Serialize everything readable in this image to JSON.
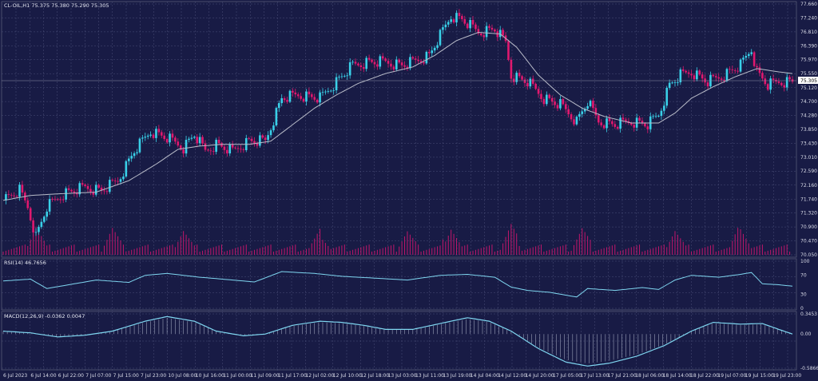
{
  "chart_data": [
    {
      "type": "candlestick",
      "panel": "price",
      "title": "CL-OIL,H1  75.375 75.380 75.290 75.305",
      "last_price_label": "75.305",
      "ylim": [
        70.05,
        77.66
      ],
      "y_ticks": [
        "77.660",
        "77.240",
        "76.810",
        "76.390",
        "75.970",
        "75.550",
        "75.120",
        "74.700",
        "74.280",
        "73.850",
        "73.430",
        "73.010",
        "72.590",
        "72.160",
        "71.740",
        "71.320",
        "70.900",
        "70.470",
        "70.050"
      ],
      "x_tick_labels": [
        "6 Jul 2023",
        "6 Jul 14:00",
        "6 Jul 22:00",
        "7 Jul 07:00",
        "7 Jul 15:00",
        "7 Jul 23:00",
        "10 Jul 08:00",
        "10 Jul 16:00",
        "11 Jul 00:00",
        "11 Jul 09:00",
        "11 Jul 17:00",
        "12 Jul 02:00",
        "12 Jul 10:00",
        "12 Jul 18:00",
        "13 Jul 03:00",
        "13 Jul 11:00",
        "13 Jul 19:00",
        "14 Jul 04:00",
        "14 Jul 12:00",
        "14 Jul 20:00",
        "17 Jul 05:00",
        "17 Jul 13:00",
        "17 Jul 21:00",
        "18 Jul 06:00",
        "18 Jul 14:00",
        "18 Jul 22:00",
        "19 Jul 07:00",
        "19 Jul 15:00",
        "19 Jul 23:00"
      ],
      "close_path": [
        [
          0,
          71.7
        ],
        [
          6,
          72.0
        ],
        [
          9,
          71.5
        ],
        [
          12,
          70.6
        ],
        [
          16,
          71.5
        ],
        [
          22,
          71.9
        ],
        [
          30,
          72.1
        ],
        [
          36,
          72.0
        ],
        [
          42,
          72.3
        ],
        [
          48,
          73.2
        ],
        [
          54,
          73.8
        ],
        [
          60,
          73.6
        ],
        [
          66,
          73.3
        ],
        [
          70,
          73.7
        ],
        [
          74,
          73.2
        ],
        [
          78,
          73.4
        ],
        [
          84,
          73.2
        ],
        [
          90,
          73.5
        ],
        [
          96,
          73.5
        ],
        [
          102,
          74.8
        ],
        [
          108,
          74.9
        ],
        [
          116,
          74.8
        ],
        [
          122,
          75.3
        ],
        [
          128,
          75.8
        ],
        [
          134,
          75.9
        ],
        [
          140,
          75.9
        ],
        [
          146,
          75.8
        ],
        [
          150,
          75.9
        ],
        [
          156,
          76.1
        ],
        [
          160,
          76.7
        ],
        [
          164,
          77.3
        ],
        [
          168,
          77.2
        ],
        [
          174,
          76.8
        ],
        [
          180,
          76.9
        ],
        [
          184,
          76.5
        ],
        [
          186,
          75.5
        ],
        [
          192,
          75.3
        ],
        [
          198,
          74.8
        ],
        [
          204,
          74.6
        ],
        [
          210,
          74.1
        ],
        [
          214,
          74.7
        ],
        [
          218,
          74.1
        ],
        [
          224,
          74.0
        ],
        [
          230,
          74.1
        ],
        [
          236,
          74.0
        ],
        [
          240,
          74.3
        ],
        [
          244,
          75.2
        ],
        [
          248,
          75.5
        ],
        [
          252,
          75.6
        ],
        [
          258,
          75.3
        ],
        [
          264,
          75.5
        ],
        [
          270,
          75.8
        ],
        [
          274,
          76.3
        ],
        [
          276,
          75.6
        ],
        [
          280,
          75.2
        ],
        [
          284,
          75.3
        ],
        [
          289,
          75.305
        ]
      ],
      "ma_path": [
        [
          0,
          71.7
        ],
        [
          10,
          71.85
        ],
        [
          20,
          71.9
        ],
        [
          34,
          71.95
        ],
        [
          46,
          72.3
        ],
        [
          56,
          72.8
        ],
        [
          64,
          73.25
        ],
        [
          72,
          73.35
        ],
        [
          80,
          73.4
        ],
        [
          90,
          73.4
        ],
        [
          98,
          73.5
        ],
        [
          106,
          74.0
        ],
        [
          114,
          74.5
        ],
        [
          122,
          74.9
        ],
        [
          130,
          75.25
        ],
        [
          140,
          75.55
        ],
        [
          150,
          75.75
        ],
        [
          158,
          76.1
        ],
        [
          166,
          76.55
        ],
        [
          174,
          76.8
        ],
        [
          182,
          76.75
        ],
        [
          188,
          76.35
        ],
        [
          196,
          75.5
        ],
        [
          204,
          74.9
        ],
        [
          212,
          74.5
        ],
        [
          220,
          74.25
        ],
        [
          230,
          74.05
        ],
        [
          240,
          74.05
        ],
        [
          246,
          74.35
        ],
        [
          252,
          74.8
        ],
        [
          260,
          75.15
        ],
        [
          268,
          75.45
        ],
        [
          276,
          75.7
        ],
        [
          284,
          75.6
        ],
        [
          289,
          75.55
        ]
      ],
      "volume_spikes": [
        [
          12,
          1
        ],
        [
          40,
          0.9
        ],
        [
          66,
          0.8
        ],
        [
          116,
          0.7
        ],
        [
          148,
          0.75
        ],
        [
          164,
          0.9
        ],
        [
          186,
          1
        ],
        [
          212,
          0.85
        ],
        [
          246,
          0.8
        ],
        [
          270,
          1
        ]
      ]
    },
    {
      "type": "line",
      "panel": "rsi",
      "title": "RSI(14) 46.7656",
      "ylim": [
        0,
        100
      ],
      "y_ticks": [
        "100",
        "70",
        "30",
        "0"
      ],
      "path": [
        [
          0,
          58
        ],
        [
          10,
          62
        ],
        [
          16,
          42
        ],
        [
          22,
          48
        ],
        [
          34,
          60
        ],
        [
          46,
          55
        ],
        [
          52,
          70
        ],
        [
          60,
          74
        ],
        [
          72,
          66
        ],
        [
          84,
          60
        ],
        [
          92,
          56
        ],
        [
          102,
          78
        ],
        [
          114,
          74
        ],
        [
          124,
          68
        ],
        [
          136,
          64
        ],
        [
          148,
          60
        ],
        [
          160,
          70
        ],
        [
          170,
          72
        ],
        [
          180,
          66
        ],
        [
          186,
          45
        ],
        [
          192,
          38
        ],
        [
          200,
          34
        ],
        [
          210,
          24
        ],
        [
          214,
          42
        ],
        [
          224,
          38
        ],
        [
          234,
          44
        ],
        [
          240,
          40
        ],
        [
          246,
          60
        ],
        [
          252,
          70
        ],
        [
          262,
          66
        ],
        [
          270,
          72
        ],
        [
          274,
          76
        ],
        [
          278,
          52
        ],
        [
          284,
          50
        ],
        [
          289,
          47
        ]
      ]
    },
    {
      "type": "line",
      "panel": "macd",
      "title": "MACD(12,26,9) -0.0362 0.0047",
      "ylim": [
        -0.5866,
        0.3453
      ],
      "y_ticks": [
        "0.3453",
        "0.00",
        "-0.5866"
      ],
      "path": [
        [
          0,
          0.05
        ],
        [
          10,
          0.02
        ],
        [
          20,
          -0.05
        ],
        [
          30,
          -0.02
        ],
        [
          40,
          0.05
        ],
        [
          52,
          0.22
        ],
        [
          60,
          0.3
        ],
        [
          70,
          0.22
        ],
        [
          78,
          0.05
        ],
        [
          88,
          -0.03
        ],
        [
          96,
          0.0
        ],
        [
          106,
          0.15
        ],
        [
          116,
          0.22
        ],
        [
          124,
          0.2
        ],
        [
          132,
          0.15
        ],
        [
          140,
          0.08
        ],
        [
          150,
          0.08
        ],
        [
          160,
          0.18
        ],
        [
          170,
          0.28
        ],
        [
          178,
          0.22
        ],
        [
          186,
          0.05
        ],
        [
          196,
          -0.25
        ],
        [
          206,
          -0.48
        ],
        [
          214,
          -0.55
        ],
        [
          222,
          -0.5
        ],
        [
          232,
          -0.38
        ],
        [
          242,
          -0.2
        ],
        [
          252,
          0.05
        ],
        [
          260,
          0.2
        ],
        [
          270,
          0.17
        ],
        [
          278,
          0.18
        ],
        [
          284,
          0.08
        ],
        [
          289,
          0.0
        ]
      ]
    }
  ]
}
